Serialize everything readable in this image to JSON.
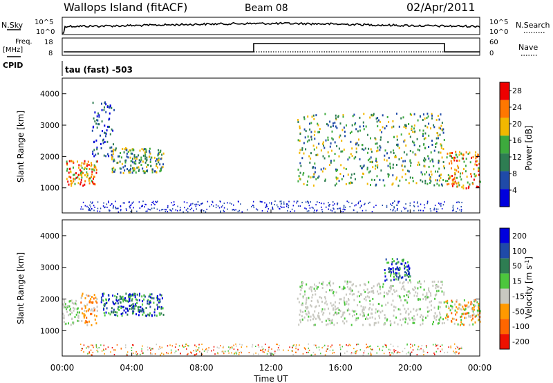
{
  "header": {
    "station": "Wallops Island (fitACF)",
    "beam": "Beam 08",
    "date": "02/Apr/2011"
  },
  "top_panels": {
    "nsky_label": "N.Sky",
    "nsky_ticks": [
      "10^5",
      "10^0"
    ],
    "nsearch_label": "N.Search",
    "nsearch_ticks": [
      "10^5",
      "10^0"
    ],
    "freq_label": "Freq.",
    "freq_unit": "[MHz]",
    "freq_ticks": [
      "18",
      "8"
    ],
    "nave_label": "Nave",
    "nave_ticks": [
      "60",
      "0"
    ],
    "cpid_label": "CPID",
    "cpid_text": "tau (fast) -503"
  },
  "chart_data": [
    {
      "type": "heatmap",
      "panel": "power",
      "ylabel": "Slant Range [km]",
      "y_ticks": [
        1000,
        2000,
        3000,
        4000
      ],
      "ylim": [
        200,
        4500
      ],
      "colorbar": {
        "label": "Power [dB]",
        "ticks": [
          4,
          8,
          12,
          16,
          20,
          24,
          28
        ],
        "range": [
          0,
          30
        ],
        "colors": [
          "#0000dd",
          "#1f4aa8",
          "#2e7d52",
          "#3daa3d",
          "#f2b800",
          "#ff7700",
          "#ee0000"
        ]
      },
      "regions": [
        {
          "t": [
            0.2,
            2.0
          ],
          "r": [
            1100,
            1900
          ],
          "level": "high"
        },
        {
          "t": [
            1.7,
            3.0
          ],
          "r": [
            2000,
            3800
          ],
          "level": "low"
        },
        {
          "t": [
            2.8,
            5.8
          ],
          "r": [
            1500,
            2300
          ],
          "level": "medium"
        },
        {
          "t": [
            13.5,
            22.0
          ],
          "r": [
            1100,
            3400
          ],
          "level": "medium"
        },
        {
          "t": [
            22.0,
            24.0
          ],
          "r": [
            1000,
            2200
          ],
          "level": "high"
        }
      ]
    },
    {
      "type": "heatmap",
      "panel": "velocity",
      "ylabel": "Slant Range [km]",
      "y_ticks": [
        1000,
        2000,
        3000,
        4000
      ],
      "ylim": [
        200,
        4500
      ],
      "colorbar": {
        "label": "Velocity [m s^-1]",
        "ticks": [
          "200",
          "100",
          "50",
          "15",
          "-15",
          "-50",
          "-100",
          "-200"
        ],
        "colors": [
          "#0000dd",
          "#1f4aa8",
          "#2e7d52",
          "#4cc63d",
          "#c8c8c0",
          "#ff9900",
          "#ff6600",
          "#ee1100"
        ]
      },
      "regions": [
        {
          "t": [
            0.0,
            1.0
          ],
          "r": [
            1200,
            2000
          ],
          "class": "ground"
        },
        {
          "t": [
            1.0,
            2.0
          ],
          "r": [
            1200,
            2200
          ],
          "class": "negative"
        },
        {
          "t": [
            2.2,
            5.8
          ],
          "r": [
            1500,
            2200
          ],
          "class": "positive"
        },
        {
          "t": [
            13.5,
            22.0
          ],
          "r": [
            1200,
            2600
          ],
          "class": "ground"
        },
        {
          "t": [
            18.5,
            20.0
          ],
          "r": [
            2600,
            3300
          ],
          "class": "positive"
        },
        {
          "t": [
            22.0,
            24.0
          ],
          "r": [
            1200,
            2000
          ],
          "class": "mixed"
        }
      ]
    }
  ],
  "time_axis": {
    "ticks": [
      "00:00",
      "04:00",
      "08:00",
      "12:00",
      "16:00",
      "20:00",
      "00:00"
    ],
    "label": "Time UT"
  }
}
